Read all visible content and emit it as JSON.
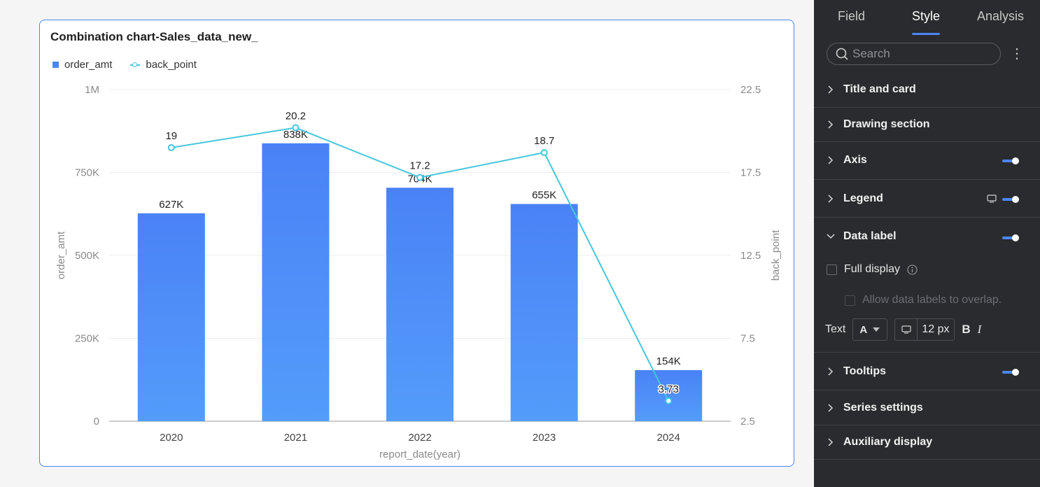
{
  "chart_card": {
    "title": "Combination chart-Sales_data_new_",
    "legend": [
      {
        "name": "order_amt",
        "type": "bar"
      },
      {
        "name": "back_point",
        "type": "line"
      }
    ]
  },
  "chart_data": {
    "type": "bar",
    "categories": [
      "2020",
      "2021",
      "2022",
      "2023",
      "2024"
    ],
    "series": [
      {
        "name": "order_amt",
        "type": "bar",
        "axis": "left",
        "values": [
          627000,
          838000,
          704000,
          655000,
          154000
        ],
        "labels": [
          "627K",
          "838K",
          "704K",
          "655K",
          "154K"
        ],
        "color": "#4a86f5"
      },
      {
        "name": "back_point",
        "type": "line",
        "axis": "right",
        "values": [
          19,
          20.2,
          17.2,
          18.7,
          3.73
        ],
        "labels": [
          "19",
          "20.2",
          "17.2",
          "18.7",
          "3.73"
        ],
        "color": "#45c7dd"
      }
    ],
    "xlabel": "report_date(year)",
    "ylabel": "order_amt",
    "y2label": "back_point",
    "ylim": [
      0,
      1000000
    ],
    "y2lim": [
      2.5,
      22.5
    ],
    "yticks": [
      0,
      250000,
      500000,
      750000,
      1000000
    ],
    "ytick_labels": [
      "0",
      "250K",
      "500K",
      "750K",
      "1M"
    ],
    "y2ticks": [
      2.5,
      7.5,
      12.5,
      17.5,
      22.5
    ],
    "y2tick_labels": [
      "2.5",
      "7.5",
      "12.5",
      "17.5",
      "22.5"
    ],
    "grid": true,
    "legend_position": "top-left"
  },
  "panel": {
    "tabs": [
      {
        "label": "Field",
        "active": false
      },
      {
        "label": "Style",
        "active": true
      },
      {
        "label": "Analysis",
        "active": false
      }
    ],
    "search_placeholder": "Search",
    "more_label": "⋮",
    "sections": {
      "title_card": "Title and card",
      "drawing_section": "Drawing section",
      "axis": "Axis",
      "legend": "Legend",
      "data_label": "Data label",
      "tooltips": "Tooltips",
      "series_settings": "Series settings",
      "auxiliary_display": "Auxiliary display"
    },
    "data_label": {
      "full_display": "Full display",
      "allow_overlap": "Allow data labels to overlap.",
      "text_label": "Text",
      "font_color_letter": "A",
      "font_size": "12 px",
      "bold": "B",
      "italic": "I"
    },
    "toggles": {
      "axis": true,
      "legend": true,
      "data_label": true,
      "tooltips": true
    },
    "accent_color": "#4a86f5"
  }
}
